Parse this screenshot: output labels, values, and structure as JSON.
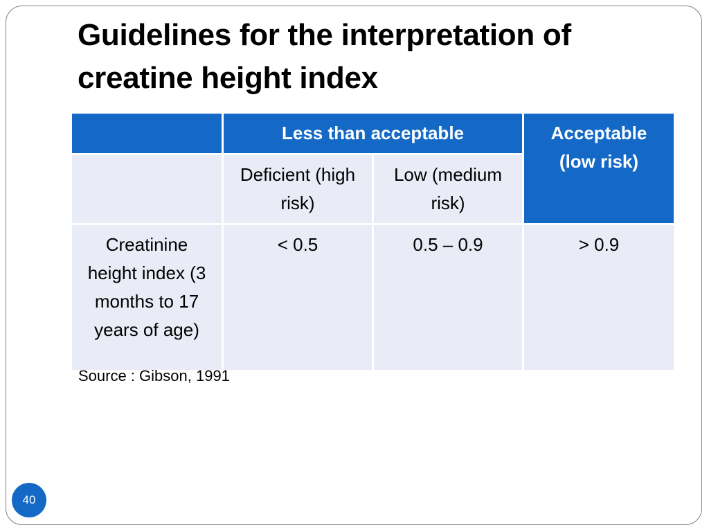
{
  "slide": {
    "title": "Guidelines for the interpretation of creatine height index",
    "source": "Source : Gibson, 1991",
    "page_number": "40"
  },
  "table": {
    "header_group_1": "Less than acceptable",
    "header_group_2": "Acceptable (low risk)",
    "sub_deficient": "Deficient (high risk)",
    "sub_low": "Low (medium risk)",
    "row_label": "Creatinine height index (3 months to 17 years of age)",
    "val_deficient": "< 0.5",
    "val_low": "0.5 – 0.9",
    "val_acceptable": "> 0.9"
  },
  "colors": {
    "header_blue": "#1469c6",
    "cell_light": "#e9ecf6"
  }
}
